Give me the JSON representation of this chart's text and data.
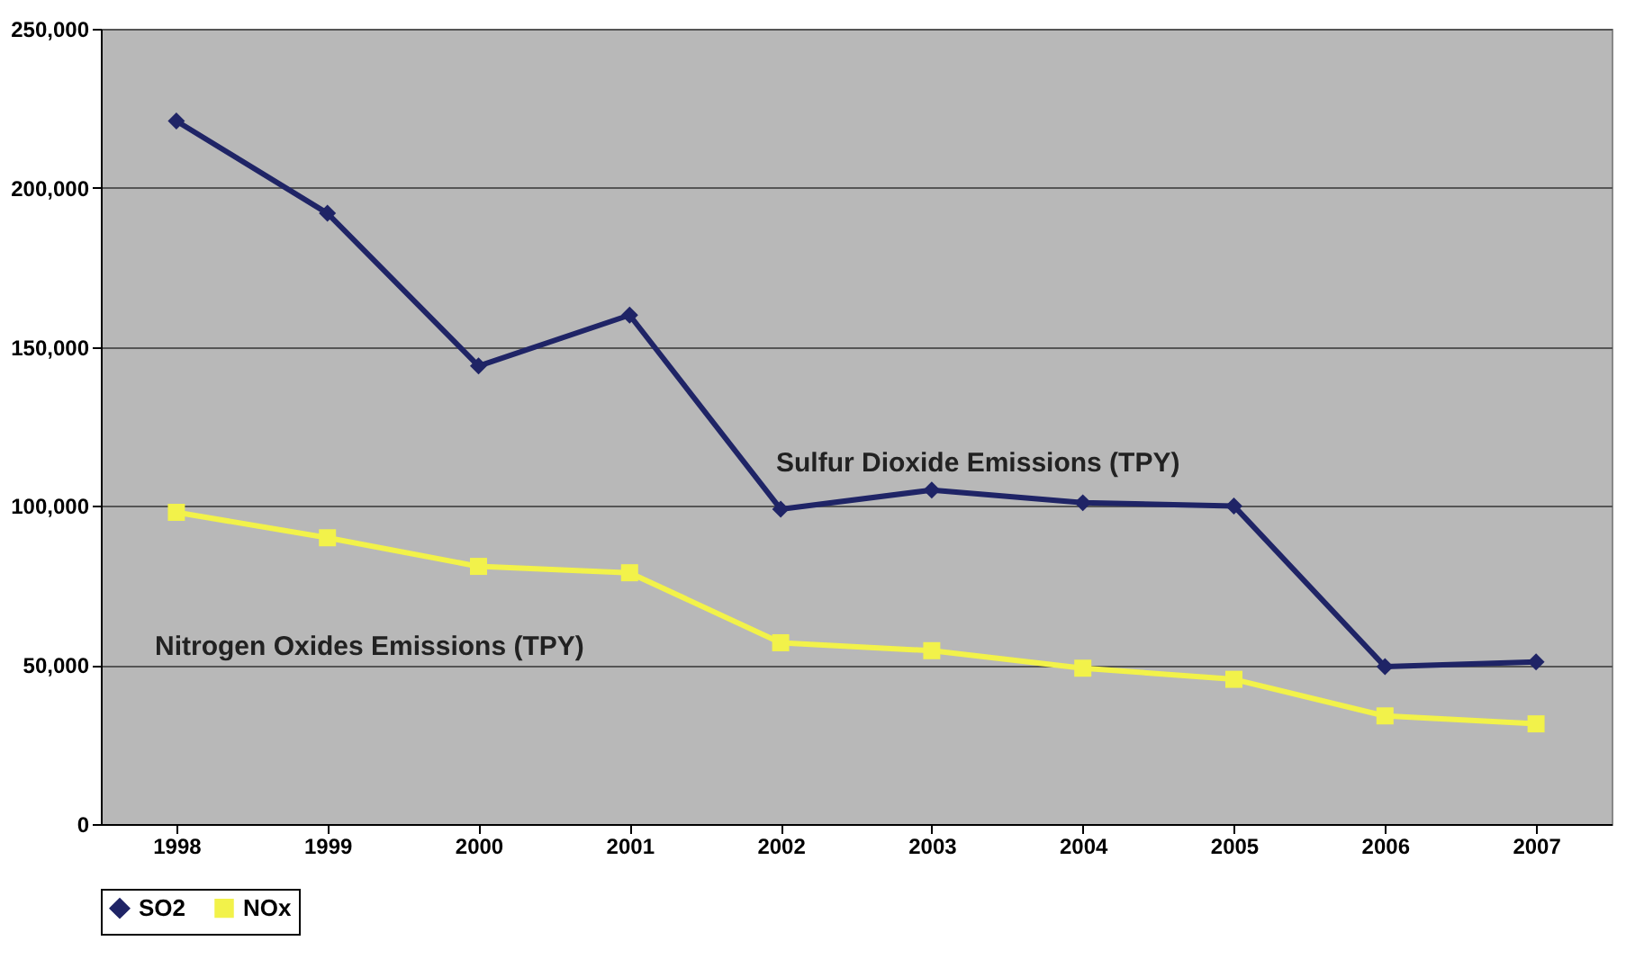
{
  "chart_data": {
    "type": "line",
    "categories": [
      "1998",
      "1999",
      "2000",
      "2001",
      "2002",
      "2003",
      "2004",
      "2005",
      "2006",
      "2007"
    ],
    "series": [
      {
        "name": "SO2",
        "color": "#1f2466",
        "marker": "diamond",
        "values": [
          221000,
          192000,
          144000,
          160000,
          99000,
          105000,
          101000,
          100000,
          49500,
          51000
        ]
      },
      {
        "name": "NOx",
        "color": "#f2f24a",
        "marker": "square",
        "values": [
          98000,
          90000,
          81000,
          79000,
          57000,
          54500,
          49000,
          45500,
          34000,
          31500
        ]
      }
    ],
    "annotations": [
      "Sulfur Dioxide Emissions (TPY)",
      "Nitrogen Oxides Emissions (TPY)"
    ],
    "ylim": [
      0,
      250000
    ],
    "yticks": [
      0,
      {
        "value": 50000,
        "label": "50,000"
      },
      {
        "value": 100000,
        "label": "100,000"
      },
      {
        "value": 150000,
        "label": "150,000"
      },
      {
        "value": 200000,
        "label": "200,000"
      },
      {
        "value": 250000,
        "label": "250,000"
      }
    ],
    "grid": "y",
    "legend": "bottom",
    "line_style": "solid"
  }
}
